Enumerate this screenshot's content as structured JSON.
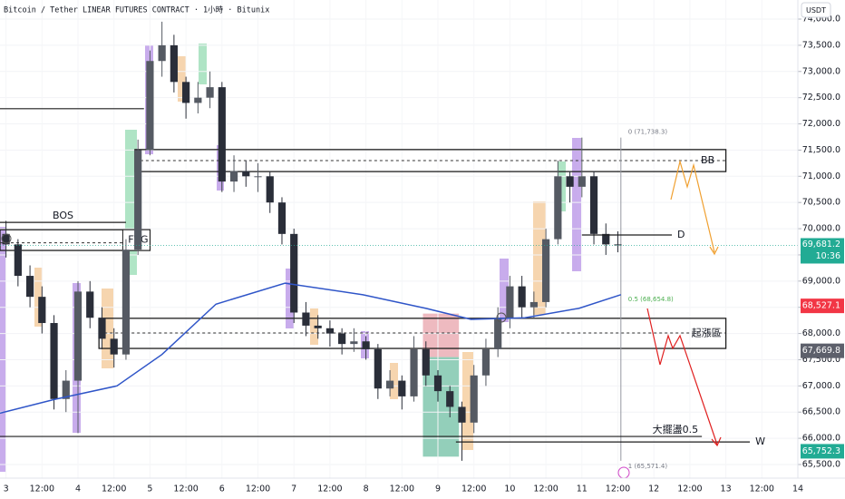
{
  "chart_data": {
    "type": "candlestick",
    "title": "Bitcoin / Tether LINEAR FUTURES CONTRACT · 1小時 · Bitunix",
    "currency_button": "USDT",
    "xlim": [
      -2,
      264
    ],
    "ylim": [
      65240,
      74364
    ],
    "xticks": [
      {
        "value": 0,
        "label": "3"
      },
      {
        "value": 12,
        "label": "12:00"
      },
      {
        "value": 24,
        "label": "4"
      },
      {
        "value": 36,
        "label": "12:00"
      },
      {
        "value": 48,
        "label": "5"
      },
      {
        "value": 60,
        "label": "12:00"
      },
      {
        "value": 72,
        "label": "6"
      },
      {
        "value": 84,
        "label": "12:00"
      },
      {
        "value": 96,
        "label": "7"
      },
      {
        "value": 108,
        "label": "12:00"
      },
      {
        "value": 120,
        "label": "8"
      },
      {
        "value": 132,
        "label": "12:00"
      },
      {
        "value": 144,
        "label": "9"
      },
      {
        "value": 156,
        "label": "12:00"
      },
      {
        "value": 168,
        "label": "10"
      },
      {
        "value": 180,
        "label": "12:00"
      },
      {
        "value": 192,
        "label": "11"
      },
      {
        "value": 204,
        "label": "12:00"
      },
      {
        "value": 216,
        "label": "12"
      },
      {
        "value": 228,
        "label": "12:00"
      },
      {
        "value": 240,
        "label": "13"
      },
      {
        "value": 252,
        "label": "12:00"
      },
      {
        "value": 264,
        "label": "14"
      }
    ],
    "yticks": [
      {
        "value": 65500,
        "label": "65,500.0"
      },
      {
        "value": 66000,
        "label": "66,000.0"
      },
      {
        "value": 66500,
        "label": "66,500.0"
      },
      {
        "value": 67000,
        "label": "67,000.0"
      },
      {
        "value": 67500,
        "label": "67,500.0"
      },
      {
        "value": 68000,
        "label": "68,000.0"
      },
      {
        "value": 68500,
        "label": "68,500.0"
      },
      {
        "value": 69000,
        "label": "69,000.0"
      },
      {
        "value": 69500,
        "label": "69,500.0"
      },
      {
        "value": 70000,
        "label": "70,000.0"
      },
      {
        "value": 70500,
        "label": "70,500.0"
      },
      {
        "value": 71000,
        "label": "71,000.0"
      },
      {
        "value": 71500,
        "label": "71,500.0"
      },
      {
        "value": 72000,
        "label": "72,000.0"
      },
      {
        "value": 72500,
        "label": "72,500.0"
      },
      {
        "value": 73000,
        "label": "73,000.0"
      },
      {
        "value": 73500,
        "label": "73,500.0"
      },
      {
        "value": 74000,
        "label": "74,000.0"
      }
    ],
    "up_color": "#555a63",
    "down_color": "#2a2e39",
    "x": [
      0,
      4,
      8,
      12,
      16,
      20,
      24,
      28,
      32,
      36,
      40,
      44,
      48,
      52,
      56,
      60,
      64,
      68,
      72,
      76,
      80,
      84,
      88,
      92,
      96,
      100,
      104,
      108,
      112,
      116,
      120,
      124,
      128,
      132,
      136,
      140,
      144,
      148,
      152,
      156,
      160,
      164,
      168,
      172,
      176,
      180,
      184,
      188,
      192,
      196,
      200,
      204
    ],
    "ohlc": [
      [
        69900,
        70150,
        69450,
        69700
      ],
      [
        69700,
        69800,
        68900,
        69100
      ],
      [
        69100,
        69300,
        68500,
        68700
      ],
      [
        68700,
        68900,
        68000,
        68200
      ],
      [
        68200,
        68350,
        66550,
        66750
      ],
      [
        66750,
        67300,
        66500,
        67100
      ],
      [
        67100,
        69000,
        66100,
        68800
      ],
      [
        68800,
        69000,
        68100,
        68300
      ],
      [
        68300,
        68500,
        67700,
        67900
      ],
      [
        67900,
        68100,
        67350,
        67600
      ],
      [
        67600,
        69800,
        67500,
        69600
      ],
      [
        69600,
        71700,
        69500,
        71500
      ],
      [
        71500,
        73400,
        71400,
        73200
      ],
      [
        73200,
        73950,
        72900,
        73500
      ],
      [
        73500,
        73700,
        72600,
        72800
      ],
      [
        72800,
        72900,
        72100,
        72400
      ],
      [
        72400,
        72800,
        72200,
        72500
      ],
      [
        72500,
        73000,
        72300,
        72700
      ],
      [
        72700,
        72800,
        70700,
        70900
      ],
      [
        70900,
        71400,
        70700,
        71100
      ],
      [
        71100,
        71300,
        70800,
        71000
      ],
      [
        71000,
        71250,
        70700,
        71000
      ],
      [
        71000,
        71100,
        70300,
        70500
      ],
      [
        70500,
        70600,
        69700,
        69900
      ],
      [
        69900,
        70000,
        68200,
        68400
      ],
      [
        68400,
        68600,
        67950,
        68150
      ],
      [
        68150,
        68350,
        67900,
        68100
      ],
      [
        68100,
        68250,
        67750,
        68000
      ],
      [
        68000,
        68100,
        67600,
        67800
      ],
      [
        67800,
        68100,
        67650,
        67850
      ],
      [
        67850,
        67950,
        67500,
        67700
      ],
      [
        67700,
        67800,
        66750,
        66950
      ],
      [
        66950,
        67300,
        66800,
        67100
      ],
      [
        67100,
        67200,
        66550,
        66800
      ],
      [
        66800,
        67950,
        66700,
        67700
      ],
      [
        67700,
        67850,
        67000,
        67200
      ],
      [
        67200,
        67300,
        66700,
        66900
      ],
      [
        66900,
        67000,
        66400,
        66600
      ],
      [
        66600,
        66700,
        65571.4,
        66300
      ],
      [
        66300,
        67400,
        66100,
        67200
      ],
      [
        67200,
        67900,
        67000,
        67700
      ],
      [
        67700,
        68500,
        67550,
        68300
      ],
      [
        68300,
        69100,
        68100,
        68900
      ],
      [
        68900,
        69100,
        68300,
        68500
      ],
      [
        68500,
        68800,
        68300,
        68600
      ],
      [
        68600,
        70000,
        68500,
        69800
      ],
      [
        69800,
        71300,
        69700,
        71000
      ],
      [
        71000,
        71100,
        70500,
        70800
      ],
      [
        70800,
        71738.3,
        70600,
        71000
      ],
      [
        71000,
        71100,
        69700,
        69900
      ],
      [
        69900,
        70100,
        69500,
        69700
      ],
      [
        69700,
        69950,
        69550,
        69681.2
      ]
    ],
    "ma": {
      "color": "#2f55c8",
      "x": [
        -2,
        16,
        37,
        52,
        70,
        93,
        119,
        140,
        155,
        173,
        191,
        205
      ],
      "values": [
        66480,
        66740,
        67000,
        67600,
        68560,
        68960,
        68740,
        68480,
        68270,
        68300,
        68480,
        68740
      ]
    },
    "shaded": [
      {
        "from": 139,
        "to": 151,
        "top": 68380,
        "bottom": 67550,
        "color": "#e8a3ab"
      },
      {
        "from": 139,
        "to": 151,
        "top": 67550,
        "bottom": 65650,
        "color": "#6fbfa3"
      }
    ],
    "boxes": [
      {
        "label": "FVG",
        "from": -2,
        "to": 48,
        "top": 69980,
        "bottom": 69585,
        "mid": 69730
      },
      {
        "label": "BB",
        "from": 43,
        "to": 240,
        "top": 71510,
        "bottom": 71090,
        "mid": 71300
      },
      {
        "label": "起漲區",
        "from": 31,
        "to": 240,
        "top": 68290,
        "bottom": 67715,
        "mid": 68010
      }
    ],
    "lines": [
      {
        "from": -2,
        "to": 46,
        "value": 72290
      },
      {
        "label": "BOS",
        "from": -2,
        "to": 40,
        "value": 70120
      },
      {
        "label": "D",
        "from": 192,
        "to": 222,
        "value": 69880
      },
      {
        "label": "大擺盪0.5",
        "from": -2,
        "to": 232,
        "value": 66035
      },
      {
        "label": "W",
        "from": 150,
        "to": 248,
        "value": 65930
      }
    ],
    "fib": {
      "at": 205,
      "levels": [
        {
          "value": 71738.3,
          "label": "0 (71,738.3)",
          "color": "#787b86"
        },
        {
          "value": 68654.8,
          "label": "0.5 (68,654.8)",
          "color": "#4caf50"
        },
        {
          "value": 65571.4,
          "label": "1 (65,571.4)",
          "color": "#787b86"
        }
      ]
    },
    "last_price": {
      "value": 69681.2,
      "label": "69,681.2",
      "countdown": "10:36",
      "color": "#22ab94"
    },
    "price_tags": [
      {
        "value": 68527.1,
        "label": "68,527.1",
        "color": "#f23645"
      },
      {
        "value": 67669.8,
        "label": "67,669.8",
        "color": "#5d606b"
      },
      {
        "value": 65752.3,
        "label": "65,752.3",
        "color": "#22ab94"
      }
    ]
  }
}
